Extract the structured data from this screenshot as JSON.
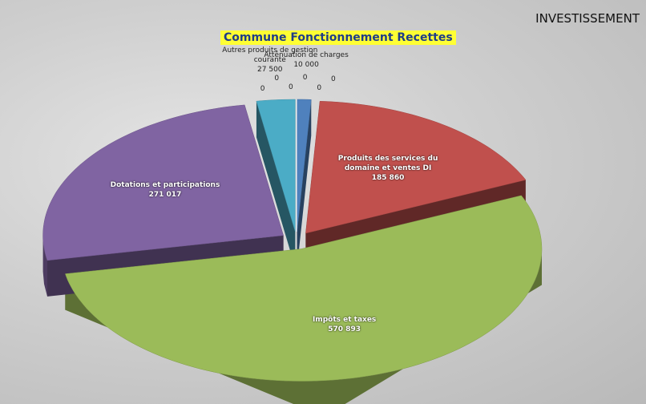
{
  "banner": "INVESTISSEMENT",
  "chart_data": {
    "type": "pie",
    "title": "Commune Fonctionnement Recettes",
    "categories": [
      "Atténuation de charges",
      "Produits des services du domaine et ventes DI",
      "Impôts et taxes",
      "Dotations et participations",
      "Autres produits de gestion courante",
      null,
      null,
      null,
      null,
      null,
      null
    ],
    "values": [
      10000,
      185860,
      570893,
      271017,
      27500,
      0,
      0,
      0,
      0,
      0,
      0
    ],
    "value_labels": [
      "10 000",
      "185 860",
      "570 893",
      "271 017",
      "27 500",
      "0",
      "0",
      "0",
      "0",
      "0",
      "0"
    ],
    "colors": [
      "#4f81bd",
      "#c0504d",
      "#9bbb59",
      "#8064a2",
      "#4bacc6",
      "#f79646",
      "#2c4d75",
      "#772c2a",
      "#5f7530",
      "#4d3b62",
      "#276a7c"
    ]
  }
}
